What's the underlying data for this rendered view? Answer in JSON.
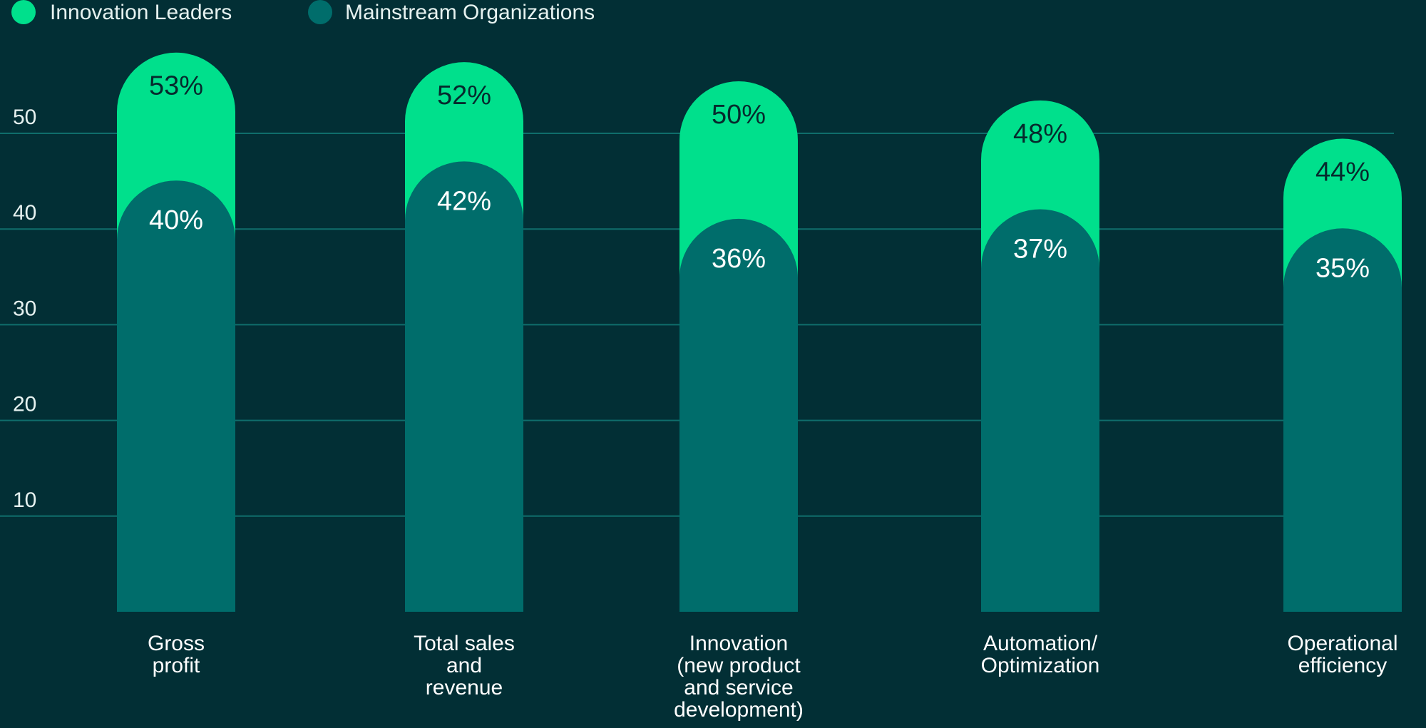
{
  "chart_data": {
    "type": "bar",
    "categories": [
      [
        "Gross",
        "profit"
      ],
      [
        "Total sales",
        "and",
        "revenue"
      ],
      [
        "Innovation",
        "(new product",
        "and service",
        "development)"
      ],
      [
        "Automation/",
        "Optimization"
      ],
      [
        "Operational",
        "efficiency"
      ]
    ],
    "series": [
      {
        "name": "Innovation Leaders",
        "values": [
          53,
          52,
          50,
          48,
          44
        ],
        "labels": [
          "53%",
          "52%",
          "50%",
          "48%",
          "44%"
        ]
      },
      {
        "name": "Mainstream Organizations",
        "values": [
          40,
          42,
          36,
          37,
          35
        ],
        "labels": [
          "40%",
          "42%",
          "36%",
          "37%",
          "35%"
        ]
      }
    ],
    "yticks": [
      10,
      20,
      30,
      40,
      50
    ],
    "grid": true,
    "legend": "top-left",
    "colors": {
      "leaders": "#00e08c",
      "mainstream": "#006d6b",
      "background": "#022f35",
      "grid": "#0f6e6c"
    }
  }
}
